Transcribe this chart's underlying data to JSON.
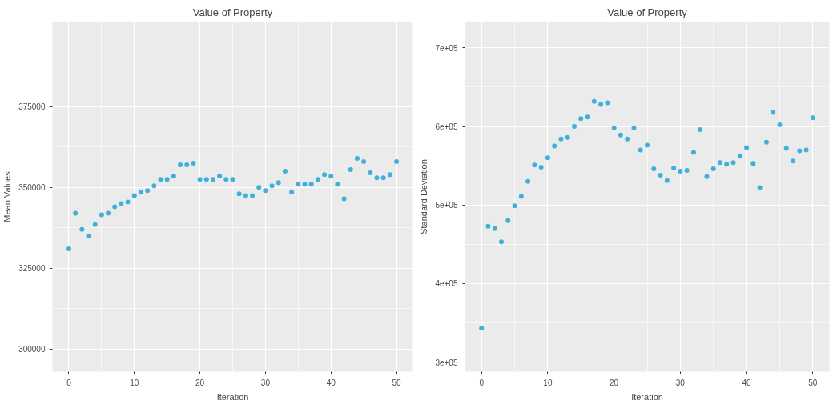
{
  "chart_data": [
    {
      "type": "scatter",
      "title": "Value of Property",
      "xlabel": "Iteration",
      "ylabel": "Mean Values",
      "marker": "circle",
      "grid": true,
      "xlim": [
        -2.5,
        52.5
      ],
      "ylim": [
        293000,
        401200
      ],
      "xticks": [
        0,
        10,
        20,
        30,
        40,
        50
      ],
      "yticks": [
        300000,
        325000,
        350000,
        375000
      ],
      "x": [
        0,
        1,
        2,
        3,
        4,
        5,
        6,
        7,
        8,
        9,
        10,
        11,
        12,
        13,
        14,
        15,
        16,
        17,
        18,
        19,
        20,
        21,
        22,
        23,
        24,
        25,
        26,
        27,
        28,
        29,
        30,
        31,
        32,
        33,
        34,
        35,
        36,
        37,
        38,
        39,
        40,
        41,
        42,
        43,
        44,
        45,
        46,
        47,
        48,
        49,
        50
      ],
      "series": [
        {
          "color": "#3fb0d9",
          "values": [
            331000,
            342000,
            337000,
            335000,
            338500,
            341500,
            342000,
            344000,
            345000,
            345500,
            347500,
            348500,
            349000,
            350500,
            352500,
            352500,
            353500,
            357000,
            357000,
            357500,
            352500,
            352500,
            352500,
            353500,
            352500,
            352500,
            348000,
            347500,
            347500,
            350000,
            349000,
            350500,
            351500,
            355000,
            348500,
            351000,
            351000,
            351000,
            352500,
            354000,
            353500,
            351000,
            346500,
            355500,
            359000,
            358000,
            354500,
            353000,
            353000,
            354000,
            358000
          ]
        }
      ]
    },
    {
      "type": "scatter",
      "title": "Value of Property",
      "xlabel": "Iteration",
      "ylabel": "Standard Deviation",
      "marker": "circle",
      "grid": true,
      "xlim": [
        -2.5,
        52.5
      ],
      "ylim": [
        287800,
        733000
      ],
      "xticks": [
        0,
        10,
        20,
        30,
        40,
        50
      ],
      "yticks": [
        {
          "value": 300000,
          "label": "3e+05"
        },
        {
          "value": 400000,
          "label": "4e+05"
        },
        {
          "value": 500000,
          "label": "5e+05"
        },
        {
          "value": 600000,
          "label": "6e+05"
        },
        {
          "value": 700000,
          "label": "7e+05"
        }
      ],
      "x": [
        0,
        1,
        2,
        3,
        4,
        5,
        6,
        7,
        8,
        9,
        10,
        11,
        12,
        13,
        14,
        15,
        16,
        17,
        18,
        19,
        20,
        21,
        22,
        23,
        24,
        25,
        26,
        27,
        28,
        29,
        30,
        31,
        32,
        33,
        34,
        35,
        36,
        37,
        38,
        39,
        40,
        41,
        42,
        43,
        44,
        45,
        46,
        47,
        48,
        49,
        50
      ],
      "series": [
        {
          "color": "#3fb0d9",
          "values": [
            343000,
            473000,
            470000,
            453000,
            480000,
            499000,
            511000,
            530000,
            551000,
            548000,
            560000,
            575000,
            584000,
            586000,
            600000,
            610000,
            612000,
            632000,
            628000,
            630000,
            598000,
            589000,
            584000,
            598000,
            570000,
            576000,
            546000,
            538000,
            531000,
            547000,
            543000,
            544000,
            567000,
            596000,
            536000,
            546000,
            554000,
            552000,
            554000,
            562000,
            573000,
            553000,
            522000,
            580000,
            618000,
            602000,
            572000,
            556000,
            569000,
            570000,
            611000
          ]
        }
      ]
    }
  ]
}
